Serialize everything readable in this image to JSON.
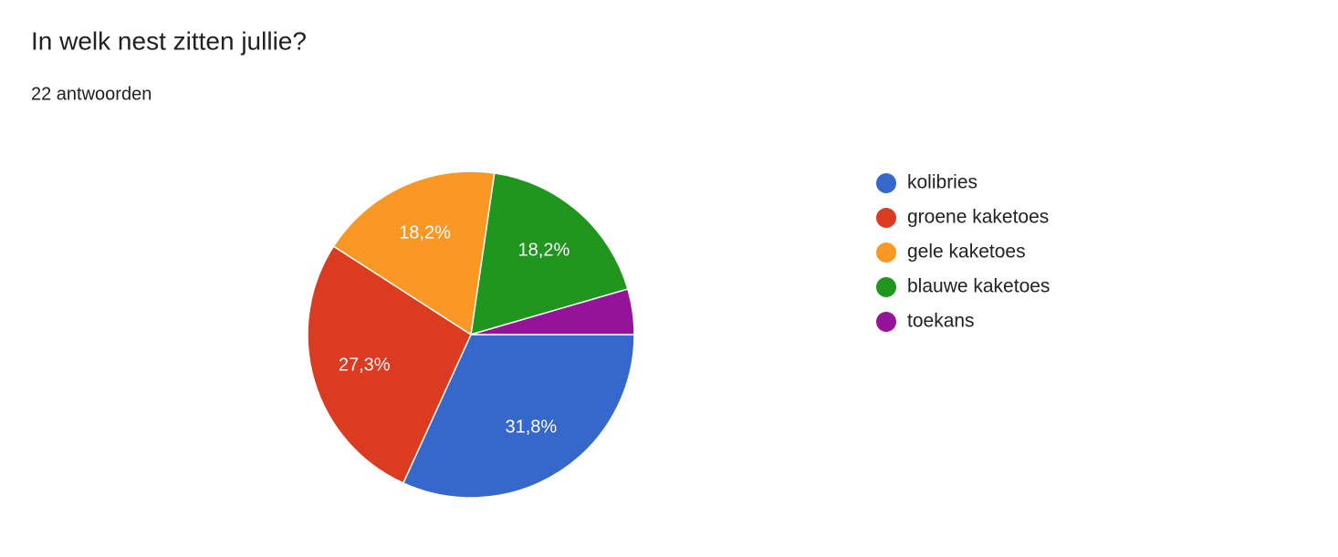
{
  "chart_data": {
    "type": "pie",
    "title": "In welk nest zitten jullie?",
    "subtitle": "22 antwoorden",
    "categories": [
      "kolibries",
      "groene kaketoes",
      "gele kaketoes",
      "blauwe kaketoes",
      "toekans"
    ],
    "values": [
      31.8,
      27.3,
      18.2,
      18.2,
      4.5
    ],
    "value_labels": [
      "31,8%",
      "27,3%",
      "18,2%",
      "18,2%",
      null
    ],
    "colors": [
      "#3668cc",
      "#db3b21",
      "#fb9825",
      "#20961e",
      "#951399"
    ],
    "legend": "right"
  }
}
